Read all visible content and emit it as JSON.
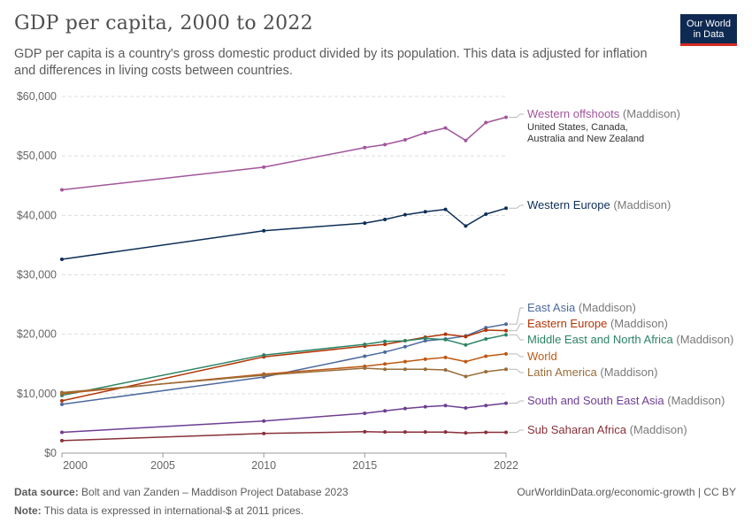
{
  "title": "GDP per capita, 2000 to 2022",
  "subtitle": "GDP per capita is a country's gross domestic product divided by its population. This data is adjusted for inflation and differences in living costs between countries.",
  "logo": {
    "line1": "Our World",
    "line2": "in Data"
  },
  "footer": {
    "source_label": "Data source:",
    "source_text": "Bolt and van Zanden – Maddison Project Database 2023",
    "url": "OurWorldinData.org/economic-growth | CC BY",
    "note_label": "Note:",
    "note_text": "This data is expressed in international-$ at 2011 prices."
  },
  "chart_data": {
    "type": "line",
    "ylim": [
      0,
      60000
    ],
    "xlim": [
      2000,
      2022
    ],
    "y_ticks": [
      {
        "value": 0,
        "label": "$0"
      },
      {
        "value": 10000,
        "label": "$10,000"
      },
      {
        "value": 20000,
        "label": "$20,000"
      },
      {
        "value": 30000,
        "label": "$30,000"
      },
      {
        "value": 40000,
        "label": "$40,000"
      },
      {
        "value": 50000,
        "label": "$50,000"
      },
      {
        "value": 60000,
        "label": "$60,000"
      }
    ],
    "x_ticks": [
      {
        "value": 2000,
        "label": "2000"
      },
      {
        "value": 2005,
        "label": "2005"
      },
      {
        "value": 2010,
        "label": "2010"
      },
      {
        "value": 2015,
        "label": "2015"
      },
      {
        "value": 2022,
        "label": "2022"
      }
    ],
    "grid": true,
    "series": [
      {
        "name": "Western offshoots",
        "suffix": "(Maddison)",
        "note": [
          "United States, Canada,",
          "Australia and New Zealand"
        ],
        "color": "#a2559c",
        "x": [
          2000,
          2010,
          2015,
          2016,
          2017,
          2018,
          2019,
          2020,
          2021,
          2022
        ],
        "values": [
          44300,
          48100,
          51400,
          51900,
          52700,
          53900,
          54700,
          52600,
          55600,
          56500
        ]
      },
      {
        "name": "Western Europe",
        "suffix": "(Maddison)",
        "color": "#0c2e56",
        "x": [
          2000,
          2010,
          2015,
          2016,
          2017,
          2018,
          2019,
          2020,
          2021,
          2022
        ],
        "values": [
          32600,
          37400,
          38700,
          39300,
          40100,
          40600,
          41000,
          38200,
          40200,
          41200
        ]
      },
      {
        "name": "East Asia",
        "suffix": "(Maddison)",
        "color": "#4c6a9c",
        "x": [
          2000,
          2010,
          2015,
          2016,
          2017,
          2018,
          2019,
          2020,
          2021,
          2022
        ],
        "values": [
          8200,
          12800,
          16300,
          17000,
          17900,
          18900,
          19200,
          19700,
          21100,
          21700
        ]
      },
      {
        "name": "Eastern Europe",
        "suffix": "(Maddison)",
        "color": "#b13507",
        "x": [
          2000,
          2010,
          2015,
          2016,
          2017,
          2018,
          2019,
          2020,
          2021,
          2022
        ],
        "values": [
          8800,
          16200,
          18000,
          18300,
          18900,
          19500,
          20000,
          19600,
          20700,
          20600
        ]
      },
      {
        "name": "Middle East and North Africa",
        "suffix": "(Maddison)",
        "color": "#2c8465",
        "x": [
          2000,
          2010,
          2015,
          2016,
          2017,
          2018,
          2019,
          2020,
          2021,
          2022
        ],
        "values": [
          9700,
          16500,
          18300,
          18800,
          18900,
          19300,
          19100,
          18200,
          19200,
          19900
        ]
      },
      {
        "name": "World",
        "suffix": "",
        "color": "#be5915",
        "x": [
          2000,
          2010,
          2015,
          2016,
          2017,
          2018,
          2019,
          2020,
          2021,
          2022
        ],
        "values": [
          10000,
          13300,
          14600,
          15000,
          15400,
          15800,
          16100,
          15400,
          16300,
          16700
        ]
      },
      {
        "name": "Latin America",
        "suffix": "(Maddison)",
        "color": "#996d39",
        "x": [
          2000,
          2010,
          2015,
          2016,
          2017,
          2018,
          2019,
          2020,
          2021,
          2022
        ],
        "values": [
          10200,
          13100,
          14300,
          14100,
          14100,
          14100,
          14000,
          12900,
          13700,
          14100
        ]
      },
      {
        "name": "South and South East Asia",
        "suffix": "(Maddison)",
        "color": "#6d3e91",
        "x": [
          2000,
          2010,
          2015,
          2016,
          2017,
          2018,
          2019,
          2020,
          2021,
          2022
        ],
        "values": [
          3500,
          5400,
          6700,
          7100,
          7500,
          7800,
          8000,
          7600,
          8000,
          8400
        ]
      },
      {
        "name": "Sub Saharan Africa",
        "suffix": "(Maddison)",
        "color": "#883039",
        "x": [
          2000,
          2010,
          2015,
          2016,
          2017,
          2018,
          2019,
          2020,
          2021,
          2022
        ],
        "values": [
          2100,
          3300,
          3600,
          3550,
          3550,
          3550,
          3550,
          3400,
          3500,
          3500
        ]
      }
    ]
  }
}
